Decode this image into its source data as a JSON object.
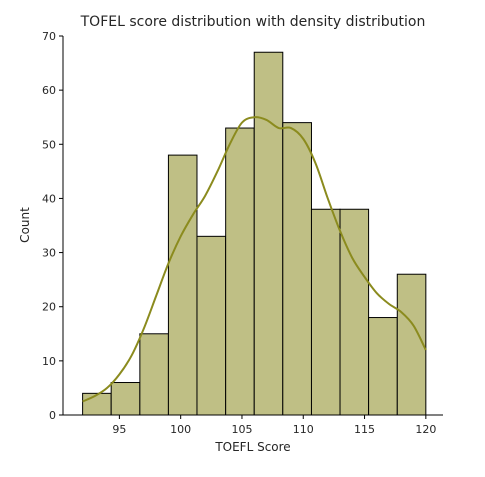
{
  "chart_data": {
    "type": "bar",
    "title": "TOFEL score distribution with density distribution",
    "xlabel": "TOEFL Score",
    "ylabel": "Count",
    "bin_edges": [
      92,
      94.33,
      96.67,
      99,
      101.33,
      103.67,
      106,
      108.33,
      110.67,
      113,
      115.33,
      117.67,
      120
    ],
    "values": [
      4,
      6,
      15,
      48,
      33,
      53,
      67,
      54,
      38,
      38,
      18,
      26
    ],
    "xlim": [
      90.4,
      121.4
    ],
    "ylim": [
      0,
      70
    ],
    "xticks": [
      95,
      100,
      105,
      110,
      115,
      120
    ],
    "yticks": [
      0,
      10,
      20,
      30,
      40,
      50,
      60,
      70
    ],
    "bar_color": "#bfbf85",
    "bar_edge_color": "#000000",
    "density_curve": {
      "color": "#8b8b1e",
      "x": [
        92,
        93,
        94,
        95,
        96,
        97,
        98,
        99,
        100,
        101,
        102,
        103,
        104,
        105,
        106,
        107,
        108,
        109,
        110,
        111,
        112,
        113,
        114,
        115,
        116,
        117,
        118,
        119,
        120
      ],
      "y": [
        2.5,
        3.5,
        5,
        7.5,
        11,
        16,
        22,
        28,
        33,
        37,
        40.5,
        45,
        50,
        54,
        55,
        54.5,
        53,
        53,
        51,
        46.5,
        40,
        34,
        29,
        25.5,
        22.5,
        20.5,
        19,
        16.5,
        12
      ]
    },
    "grid": false,
    "legend": "none"
  }
}
